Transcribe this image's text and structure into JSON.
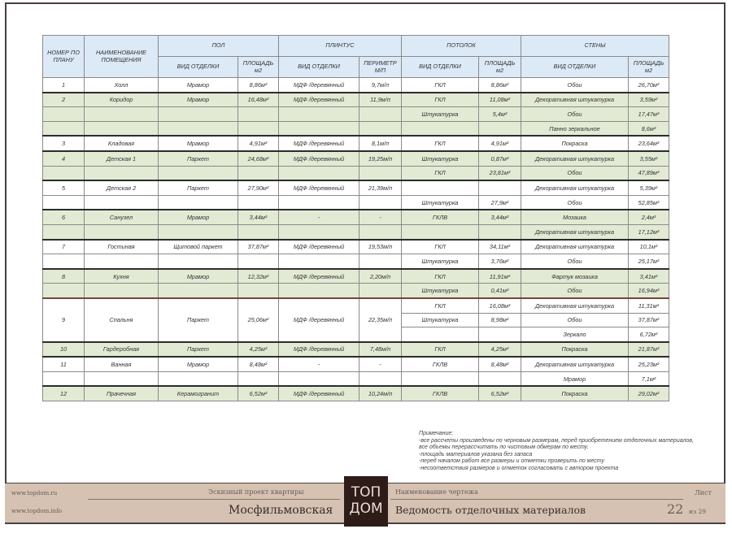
{
  "header": {
    "num": "НОМЕР ПО ПЛАНУ",
    "name": "НАИМЕНОВАНИЕ ПОМЕЩЕНИЯ",
    "floor": "ПОЛ",
    "plinth": "ПЛИНТУС",
    "ceiling": "ПОТОЛОК",
    "walls": "СТЕНЫ",
    "finish_type": "ВИД ОТДЕЛКИ",
    "area": "ПЛОЩАДЬ м2",
    "perimeter": "ПЕРИМЕТР М/П"
  },
  "groups": [
    {
      "num": "1",
      "name": "Холл",
      "floor": "Мрамор",
      "floor_area": "8,86м²",
      "plinth": "МДФ /деревянный",
      "perimeter": "9,7м/п",
      "color": "white",
      "lines": [
        {
          "ceiling": "ГКЛ",
          "ceiling_area": "8,86м²",
          "wall": "Обои",
          "wall_area": "26,70м²"
        }
      ]
    },
    {
      "num": "2",
      "name": "Коридор",
      "floor": "Мрамор",
      "floor_area": "16,48м²",
      "plinth": "МДФ /деревянный",
      "perimeter": "11,9м/п",
      "color": "green",
      "lines": [
        {
          "ceiling": "ГКЛ",
          "ceiling_area": "11,08м²",
          "wall": "Декоративная штукатурка",
          "wall_area": "3,59м²"
        },
        {
          "ceiling": "Штукатурка",
          "ceiling_area": "5,4м²",
          "wall": "Обои",
          "wall_area": "17,47м²"
        },
        {
          "ceiling": "",
          "ceiling_area": "",
          "wall": "Панно зеркальное",
          "wall_area": "8,6м²"
        }
      ]
    },
    {
      "num": "3",
      "name": "Кладовая",
      "floor": "Мрамор",
      "floor_area": "4,91м²",
      "plinth": "МДФ /деревянный",
      "perimeter": "8,1м/п",
      "color": "white",
      "lines": [
        {
          "ceiling": "ГКЛ",
          "ceiling_area": "4,91м²",
          "wall": "Покраска",
          "wall_area": "23,64м²"
        }
      ]
    },
    {
      "num": "4",
      "name": "Детская 1",
      "floor": "Паркет",
      "floor_area": "24,68м²",
      "plinth": "МДФ /деревянный",
      "perimeter": "19,25м/п",
      "color": "green",
      "lines": [
        {
          "ceiling": "Штукатурка",
          "ceiling_area": "0,87м²",
          "wall": "Декоративная штукатурка",
          "wall_area": "3,55м²"
        },
        {
          "ceiling": "ГКЛ",
          "ceiling_area": "23,81м²",
          "wall": "Обои",
          "wall_area": "47,89м²"
        }
      ]
    },
    {
      "num": "5",
      "name": "Детская 2",
      "floor": "Паркет",
      "floor_area": "27,90м²",
      "plinth": "МДФ /деревянный",
      "perimeter": "21,39м/п",
      "color": "white",
      "lines": [
        {
          "ceiling": "",
          "ceiling_area": "",
          "wall": "Декоративная штукатурка",
          "wall_area": "5,39м²"
        },
        {
          "ceiling": "Штукатурка",
          "ceiling_area": "27,9м²",
          "wall": "Обои",
          "wall_area": "52,85м²"
        }
      ]
    },
    {
      "num": "6",
      "name": "Санузел",
      "floor": "Мрамор",
      "floor_area": "3,44м²",
      "plinth": "-",
      "perimeter": "-",
      "color": "green",
      "lines": [
        {
          "ceiling": "ГКЛВ",
          "ceiling_area": "3,44м²",
          "wall": "Мозаика",
          "wall_area": "2,4м²"
        },
        {
          "ceiling": "",
          "ceiling_area": "",
          "wall": "Декоративная штукатурка",
          "wall_area": "17,12м²"
        }
      ]
    },
    {
      "num": "7",
      "name": "Гостиная",
      "floor": "Щитовой паркет",
      "floor_area": "37,87м²",
      "plinth": "МДФ /деревянный",
      "perimeter": "19,53м/п",
      "color": "white",
      "lines": [
        {
          "ceiling": "ГКЛ",
          "ceiling_area": "34,11м²",
          "wall": "Декоративная штукатурка",
          "wall_area": "10,1м²"
        },
        {
          "ceiling": "Штукатурка",
          "ceiling_area": "3,76м²",
          "wall": "Обои",
          "wall_area": "25,17м²"
        }
      ]
    },
    {
      "num": "8",
      "name": "Кухня",
      "floor": "Мрамор",
      "floor_area": "12,32м²",
      "plinth": "МДФ /деревянный",
      "perimeter": "2,20м/п",
      "color": "green",
      "lines": [
        {
          "ceiling": "ГКЛ",
          "ceiling_area": "11,91м²",
          "wall": "Фартук мозаика",
          "wall_area": "3,41м²"
        },
        {
          "ceiling": "Штукатурка",
          "ceiling_area": "0,41м²",
          "wall": "Обои",
          "wall_area": "16,94м²"
        }
      ]
    },
    {
      "num": "9",
      "name": "Спальня",
      "floor": "Паркет",
      "floor_area": "25,06м²",
      "plinth": "МДФ /деревянный",
      "perimeter": "22,35м/п",
      "color": "white",
      "merged": true,
      "lines": [
        {
          "ceiling": "ГКЛ",
          "ceiling_area": "16,08м²",
          "wall": "Декоративная штукатурка",
          "wall_area": "11,31м²"
        },
        {
          "ceiling": "Штукатурка",
          "ceiling_area": "8,98м²",
          "wall": "Обои",
          "wall_area": "37,87м²"
        },
        {
          "ceiling": "",
          "ceiling_area": "",
          "wall": "Зеркало",
          "wall_area": "6,72м²"
        }
      ]
    },
    {
      "num": "10",
      "name": "Гардеробная",
      "floor": "Паркет",
      "floor_area": "4,25м²",
      "plinth": "МДФ /деревянный",
      "perimeter": "7,48м/п",
      "color": "green",
      "lines": [
        {
          "ceiling": "ГКЛ",
          "ceiling_area": "4,25м²",
          "wall": "Покраска",
          "wall_area": "21,87м²"
        }
      ]
    },
    {
      "num": "11",
      "name": "Ванная",
      "floor": "Мрамор",
      "floor_area": "8,48м²",
      "plinth": "-",
      "perimeter": "-",
      "color": "white",
      "lines": [
        {
          "ceiling": "ГКЛВ",
          "ceiling_area": "8,48м²",
          "wall": "Декоративная штукатурка",
          "wall_area": "25,23м²"
        },
        {
          "ceiling": "",
          "ceiling_area": "",
          "wall": "Мрамор",
          "wall_area": "7,1м²"
        }
      ]
    },
    {
      "num": "12",
      "name": "Прачечная",
      "floor": "Керамогранит",
      "floor_area": "6,52м²",
      "plinth": "МДФ /деревянный",
      "perimeter": "10,24м/п",
      "color": "green",
      "lines": [
        {
          "ceiling": "ГКЛВ",
          "ceiling_area": "6,52м²",
          "wall": "Покраска",
          "wall_area": "29,02м²"
        }
      ]
    }
  ],
  "notes": {
    "title": "Примечание:",
    "items": [
      "-все рассчеты произведены по черновым размерам, перед приобретением отделочных материалов,",
      "все объемы перерассчитать по чистовым обмерам по месту.",
      "-площадь материалов указана без запаса",
      "-перед началом работ все размеры и отметки проверить по месту",
      "-несоответствия размеров и отметок согласовать с автором проекта"
    ]
  },
  "footer": {
    "site1": "www.topdom.ru",
    "site2": "www.topdom.info",
    "project_label": "Эскизный проект квартиры",
    "project_name": "Мосфильмовская",
    "logo_top": "ТОП",
    "logo_bottom": "ДОМ",
    "drawing_label": "Наименование чертежа",
    "drawing_name": "Ведомость отделочных материалов",
    "sheet_label": "Лист",
    "sheet_num": "22",
    "sheet_of": "из 29"
  },
  "colors": {
    "header_bg": "#dce9f6",
    "row_green": "#e2ead4",
    "footer_bg": "#d5c2b2",
    "logo_bg": "#2e1c19"
  }
}
